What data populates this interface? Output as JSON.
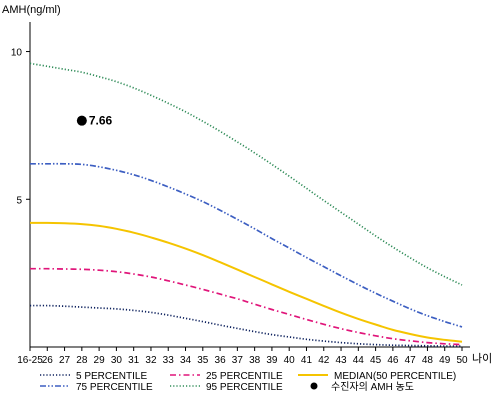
{
  "chart_data": {
    "type": "line",
    "ylabel": "AMH(ng/ml)",
    "xlabel": "나이",
    "categories": [
      "16-25",
      "26",
      "27",
      "28",
      "29",
      "30",
      "31",
      "32",
      "33",
      "34",
      "35",
      "36",
      "37",
      "38",
      "39",
      "40",
      "41",
      "42",
      "43",
      "44",
      "45",
      "46",
      "47",
      "48",
      "49",
      "50"
    ],
    "y_ticks": [
      5,
      10
    ],
    "ylim": [
      0,
      11
    ],
    "grid": false,
    "legend_position": "bottom",
    "series": [
      {
        "name": "5 PERCENTILE",
        "style": "dotted",
        "color": "#0b1f5c",
        "values": [
          1.4,
          1.4,
          1.38,
          1.35,
          1.32,
          1.29,
          1.24,
          1.17,
          1.08,
          0.97,
          0.86,
          0.74,
          0.63,
          0.52,
          0.42,
          0.34,
          0.26,
          0.2,
          0.15,
          0.11,
          0.08,
          0.06,
          0.05,
          0.04,
          0.03,
          0.03
        ]
      },
      {
        "name": "25 PERCENTILE",
        "style": "dashdot",
        "color": "#e0157a",
        "values": [
          2.65,
          2.65,
          2.64,
          2.63,
          2.6,
          2.55,
          2.47,
          2.37,
          2.24,
          2.1,
          1.95,
          1.79,
          1.63,
          1.45,
          1.27,
          1.1,
          0.93,
          0.77,
          0.62,
          0.49,
          0.38,
          0.28,
          0.21,
          0.15,
          0.11,
          0.08
        ]
      },
      {
        "name": "MEDIAN(50 PERCENTILE)",
        "style": "solid",
        "color": "#f5c400",
        "values": [
          4.2,
          4.2,
          4.19,
          4.16,
          4.1,
          4.0,
          3.87,
          3.71,
          3.53,
          3.33,
          3.11,
          2.87,
          2.62,
          2.37,
          2.12,
          1.87,
          1.63,
          1.39,
          1.16,
          0.95,
          0.76,
          0.58,
          0.44,
          0.32,
          0.24,
          0.18
        ]
      },
      {
        "name": "75 PERCENTILE",
        "style": "dashdotdot",
        "color": "#3d5fc2",
        "values": [
          6.2,
          6.2,
          6.2,
          6.18,
          6.1,
          5.98,
          5.83,
          5.64,
          5.42,
          5.18,
          4.92,
          4.63,
          4.32,
          4.0,
          3.67,
          3.35,
          3.03,
          2.72,
          2.41,
          2.11,
          1.82,
          1.55,
          1.29,
          1.06,
          0.86,
          0.68
        ]
      },
      {
        "name": "95 PERCENTILE",
        "style": "dotted",
        "color": "#2e8b57",
        "values": [
          9.6,
          9.5,
          9.4,
          9.3,
          9.15,
          8.98,
          8.77,
          8.52,
          8.25,
          7.96,
          7.64,
          7.3,
          6.94,
          6.57,
          6.18,
          5.78,
          5.37,
          4.96,
          4.56,
          4.16,
          3.76,
          3.38,
          3.02,
          2.68,
          2.38,
          2.1
        ]
      }
    ],
    "marker": {
      "label": "수진자의 AMH 농도",
      "value": 7.66,
      "value_text": "7.66",
      "x_category": "28",
      "color": "#000000"
    }
  }
}
